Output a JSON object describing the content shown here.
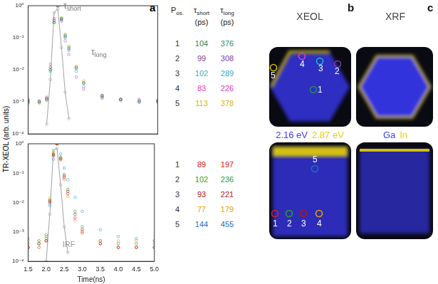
{
  "panel_a": {
    "label": "a",
    "y_label": "TR-XEOL (arb. units)"
  },
  "chart_data": [
    {
      "type": "scatter",
      "log": "y",
      "grid": false,
      "tick_labels": "y",
      "xlim": [
        1.5,
        5
      ],
      "xticks": [
        1.5,
        {
          "value": 2,
          "label": "2.0"
        },
        2.5,
        {
          "value": 3,
          "label": "3.0"
        },
        3.5,
        {
          "value": 4,
          "label": "4.0"
        },
        4.5,
        {
          "value": 5,
          "label": "5.0"
        }
      ],
      "ylim": [
        0.0001,
        1
      ],
      "yticks": [
        {
          "value": 0.0001,
          "label": "10⁻⁴"
        },
        {
          "value": 0.001,
          "label": "10⁻³"
        },
        {
          "value": 0.01,
          "label": "10⁻²"
        },
        {
          "value": 0.1,
          "label": "10⁻¹"
        },
        {
          "value": 1,
          "label": "10⁰"
        }
      ],
      "x": [
        1.5,
        1.8,
        2.0,
        2.1,
        2.2,
        2.3,
        2.4,
        2.5,
        2.6,
        2.8,
        3.0,
        3.5,
        4.0,
        4.5,
        5.0
      ],
      "series": [
        {
          "name": "1",
          "color": "#2e8b57",
          "values": [
            0.001,
            0.001,
            0.0012,
            0.01,
            0.3,
            1,
            0.4,
            0.12,
            0.05,
            0.012,
            0.004,
            0.0015,
            0.0012,
            0.0011,
            0.001
          ]
        },
        {
          "name": "2",
          "color": "#7b3f9e",
          "values": [
            0.0011,
            0.001,
            0.0013,
            0.012,
            0.35,
            1,
            0.38,
            0.11,
            0.045,
            0.011,
            0.0038,
            0.0016,
            0.0012,
            0.001,
            0.0011
          ]
        },
        {
          "name": "3",
          "color": "#1fb5c9",
          "values": [
            0.0009,
            0.001,
            0.0011,
            0.009,
            0.3,
            1,
            0.36,
            0.1,
            0.04,
            0.009,
            0.003,
            0.0013,
            0.0011,
            0.001,
            0.001
          ]
        },
        {
          "name": "4",
          "color": "#e040b0",
          "values": [
            0.0012,
            0.0011,
            0.0014,
            0.015,
            0.4,
            1,
            0.33,
            0.08,
            0.03,
            0.006,
            0.0025,
            0.0014,
            0.0012,
            0.0012,
            0.0011
          ]
        },
        {
          "name": "5",
          "color": "#d4b800",
          "values": [
            0.001,
            0.0009,
            0.0012,
            0.01,
            0.3,
            1,
            0.42,
            0.13,
            0.055,
            0.013,
            0.0045,
            0.0016,
            0.0012,
            0.001,
            0.001
          ]
        },
        {
          "name": "IRF",
          "color": "#a0a0a0",
          "values": [
            null,
            null,
            0.0002,
            0.005,
            0.6,
            0.8,
            0.05,
            0.002,
            0.0003,
            null,
            null,
            null,
            null,
            null,
            null
          ]
        }
      ],
      "annotations": [
        {
          "text": "τshort",
          "x": 2.45,
          "y": 0.8,
          "color": "#777777"
        },
        {
          "text": "τlong",
          "x": 3.2,
          "y": 0.03,
          "color": "#777777"
        }
      ]
    },
    {
      "type": "scatter",
      "log": "y",
      "grid": false,
      "x_label": "Time(ns)",
      "xlim": [
        1.5,
        5
      ],
      "xticks": [
        1.5,
        {
          "value": 2,
          "label": "2.0"
        },
        2.5,
        {
          "value": 3,
          "label": "3.0"
        },
        3.5,
        {
          "value": 4,
          "label": "4.0"
        },
        4.5,
        {
          "value": 5,
          "label": "5.0"
        }
      ],
      "ylim": [
        0.0001,
        1
      ],
      "yticks": [
        {
          "value": 0.0001,
          "label": "10⁻⁴"
        },
        {
          "value": 0.001,
          "label": "10⁻³"
        },
        {
          "value": 0.01,
          "label": "10⁻²"
        },
        {
          "value": 0.1,
          "label": "10⁻¹"
        },
        {
          "value": 1,
          "label": "10⁰"
        }
      ],
      "x": [
        1.5,
        1.8,
        2.0,
        2.1,
        2.2,
        2.3,
        2.4,
        2.5,
        2.6,
        2.8,
        3.0,
        3.5,
        4.0,
        4.5,
        5.0
      ],
      "series": [
        {
          "name": "1",
          "color": "#d62020",
          "values": [
            0.0003,
            0.0003,
            0.0005,
            0.01,
            0.4,
            1,
            0.3,
            0.07,
            0.02,
            0.003,
            0.001,
            0.0004,
            0.0003,
            0.0003,
            0.0003
          ]
        },
        {
          "name": "2",
          "color": "#2ca02c",
          "values": [
            0.0004,
            0.0004,
            0.0006,
            0.012,
            0.45,
            1,
            0.35,
            0.09,
            0.028,
            0.005,
            0.0015,
            0.0005,
            0.0004,
            0.0004,
            0.0004
          ]
        },
        {
          "name": "3",
          "color": "#b01818",
          "values": [
            0.0003,
            0.0004,
            0.0005,
            0.011,
            0.42,
            1,
            0.32,
            0.08,
            0.024,
            0.004,
            0.0012,
            0.0004,
            0.0003,
            0.0003,
            0.0003
          ]
        },
        {
          "name": "4",
          "color": "#e8a000",
          "values": [
            0.0005,
            0.0005,
            0.0007,
            0.014,
            0.5,
            1,
            0.28,
            0.06,
            0.016,
            0.0025,
            0.0009,
            0.0005,
            0.0005,
            0.0005,
            0.0005
          ]
        },
        {
          "name": "5",
          "color": "#1fa0c9",
          "values": [
            0.0006,
            0.0005,
            0.0008,
            0.008,
            0.3,
            1,
            0.45,
            0.15,
            0.06,
            0.015,
            0.005,
            0.0012,
            0.0007,
            0.0006,
            0.0005
          ]
        },
        {
          "name": "IRF",
          "color": "#a0a0a0",
          "values": [
            null,
            null,
            0.0001,
            0.004,
            0.6,
            0.7,
            0.04,
            0.0015,
            0.0002,
            null,
            null,
            null,
            null,
            null,
            null
          ]
        }
      ],
      "annotations": [
        {
          "text": "IRF",
          "x": 2.45,
          "y": 0.0003,
          "color": "#999999"
        }
      ]
    }
  ],
  "tables": [
    {
      "columns": [
        "Pos.",
        "τshort",
        "τlong"
      ],
      "unit": "(ps)",
      "rows": [
        {
          "pos": "1",
          "short": 104,
          "long": 376,
          "color": "#2e8b57"
        },
        {
          "pos": "2",
          "short": 99,
          "long": 308,
          "color": "#7b3f9e"
        },
        {
          "pos": "3",
          "short": 102,
          "long": 289,
          "color": "#1fb5c9"
        },
        {
          "pos": "4",
          "short": 83,
          "long": 226,
          "color": "#e040b0"
        },
        {
          "pos": "5",
          "short": 113,
          "long": 378,
          "color": "#d4b800"
        }
      ]
    },
    {
      "rows": [
        {
          "pos": "1",
          "short": 89,
          "long": 197,
          "color": "#d62020"
        },
        {
          "pos": "2",
          "short": 102,
          "long": 236,
          "color": "#2ca02c"
        },
        {
          "pos": "3",
          "short": 93,
          "long": 221,
          "color": "#b01818"
        },
        {
          "pos": "4",
          "short": 77,
          "long": 179,
          "color": "#e8a000"
        },
        {
          "pos": "5",
          "short": 144,
          "long": 455,
          "color": "#1f6fbf"
        }
      ]
    }
  ],
  "maps": [
    {
      "label": "b",
      "title": "XEOL",
      "channels": [
        {
          "text": "2.16 eV",
          "color": "#3b3bff"
        },
        {
          "text": "2.87 eV",
          "color": "#e6d200"
        }
      ]
    },
    {
      "label": "c",
      "title": "XRF",
      "channels": [
        {
          "text": "Ga",
          "color": "#3b3bff"
        },
        {
          "text": "In",
          "color": "#e6d200"
        }
      ]
    }
  ]
}
